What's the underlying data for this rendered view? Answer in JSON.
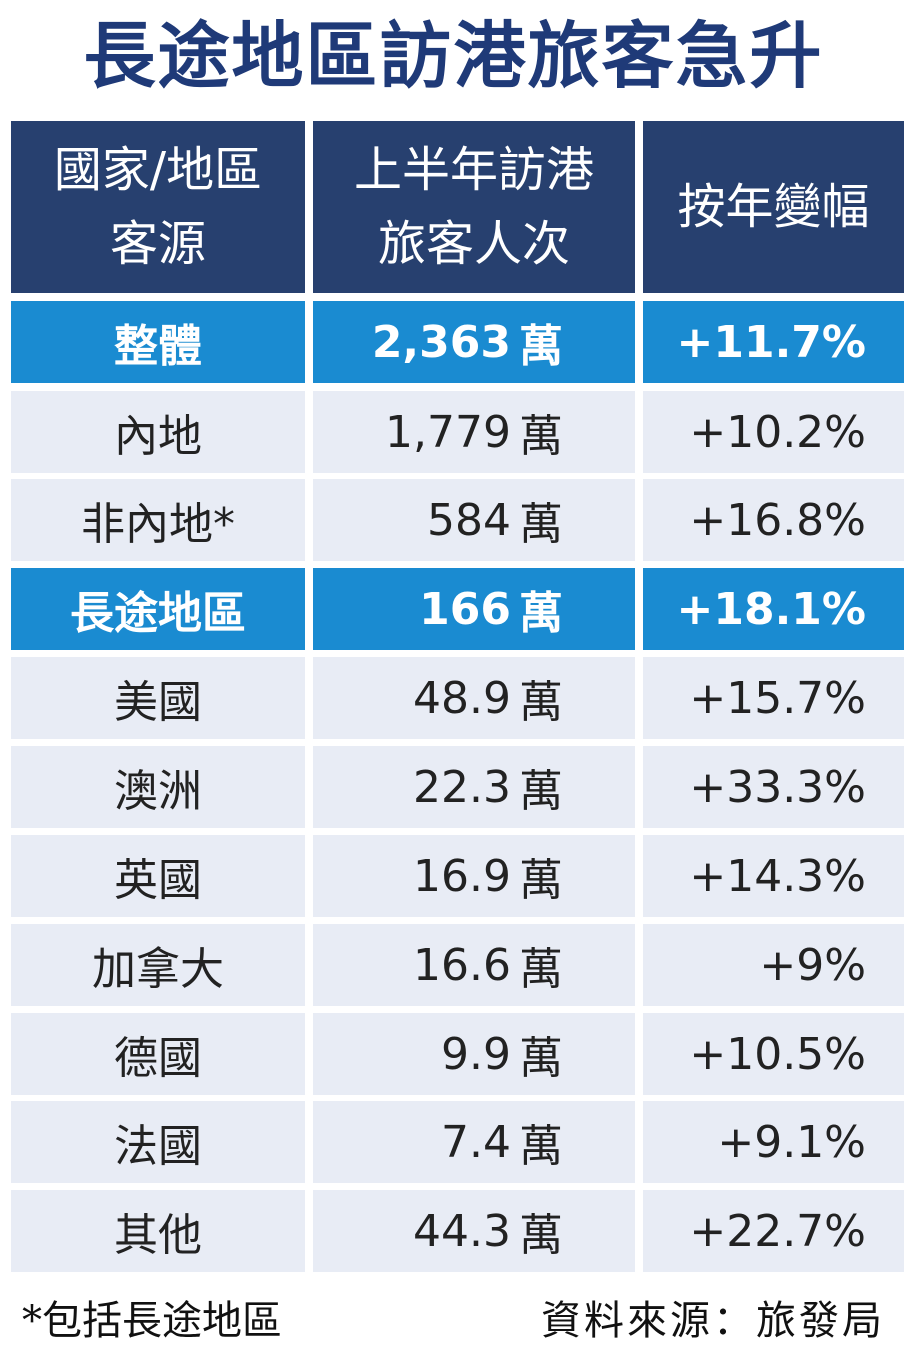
{
  "title": "長途地區訪港旅客急升",
  "chart_data": {
    "type": "table",
    "title": "長途地區訪港旅客急升",
    "columns": [
      "國家/地區\n客源",
      "上半年訪港\n旅客人次",
      "按年變幅"
    ],
    "rows": [
      {
        "region": "整體",
        "visitors": "2,363",
        "unit": "萬",
        "change": "+11.7%",
        "highlight": true
      },
      {
        "region": "內地",
        "visitors": "1,779",
        "unit": "萬",
        "change": "+10.2%",
        "highlight": false
      },
      {
        "region": "非內地*",
        "visitors": "584",
        "unit": "萬",
        "change": "+16.8%",
        "highlight": false
      },
      {
        "region": "長途地區",
        "visitors": "166",
        "unit": "萬",
        "change": "+18.1%",
        "highlight": true
      },
      {
        "region": "美國",
        "visitors": "48.9",
        "unit": "萬",
        "change": "+15.7%",
        "highlight": false
      },
      {
        "region": "澳洲",
        "visitors": "22.3",
        "unit": "萬",
        "change": "+33.3%",
        "highlight": false
      },
      {
        "region": "英國",
        "visitors": "16.9",
        "unit": "萬",
        "change": "+14.3%",
        "highlight": false
      },
      {
        "region": "加拿大",
        "visitors": "16.6",
        "unit": "萬",
        "change": "+9%",
        "highlight": false
      },
      {
        "region": "德國",
        "visitors": "9.9",
        "unit": "萬",
        "change": "+10.5%",
        "highlight": false
      },
      {
        "region": "法國",
        "visitors": "7.4",
        "unit": "萬",
        "change": "+9.1%",
        "highlight": false
      },
      {
        "region": "其他",
        "visitors": "44.3",
        "unit": "萬",
        "change": "+22.7%",
        "highlight": false
      }
    ]
  },
  "footer": {
    "footnote": "*包括長途地區",
    "source": "資料來源：旅發局"
  },
  "colors": {
    "title": "#1f3a78",
    "header_bg": "#27406f",
    "highlight_bg": "#1a8bd1",
    "row_bg": "#e8ecf5"
  }
}
